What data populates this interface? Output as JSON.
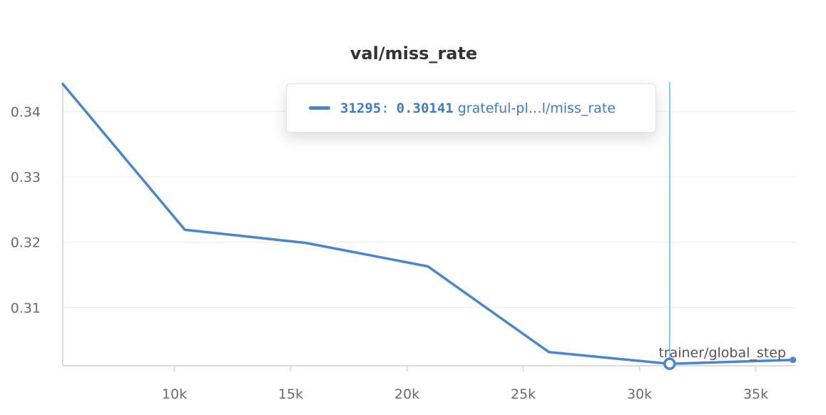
{
  "chart_data": {
    "type": "line",
    "title": "val/miss_rate",
    "xlabel": "trainer/global_step",
    "ylabel": "",
    "xlim": [
      5200,
      36700
    ],
    "ylim": [
      0.3011,
      0.3445
    ],
    "yticks": [
      0.31,
      0.32,
      0.33,
      0.34
    ],
    "ytick_labels": [
      "0.31",
      "0.32",
      "0.33",
      "0.34"
    ],
    "xticks": [
      10000,
      15000,
      20000,
      25000,
      30000,
      35000
    ],
    "xtick_labels": [
      "10k",
      "15k",
      "20k",
      "25k",
      "30k",
      "35k"
    ],
    "grid": true,
    "series": [
      {
        "color": "#4a86cc",
        "x": [
          5200,
          10450,
          15650,
          20900,
          26100,
          31295,
          36600
        ],
        "y": [
          0.3442,
          0.3219,
          0.3199,
          0.3163,
          0.3032,
          0.30141,
          0.302
        ]
      }
    ],
    "hover": {
      "step": "31295",
      "separator": ":",
      "value": "0.30141",
      "run_label": "grateful-pl…l/miss_rate",
      "x": 31295,
      "y": 0.30141,
      "line_color": "#5bc4cc"
    }
  }
}
